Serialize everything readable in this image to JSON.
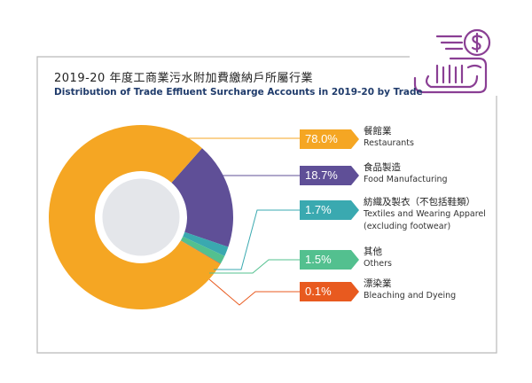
{
  "title_zh": "2019-20 年度工商業污水附加費繳納戶所屬行業",
  "title_en": "Distribution of Trade Effluent Surcharge Accounts in 2019-20 by Trade",
  "colors": {
    "frame": "#b9b9b9",
    "restaurants": "#f5a623",
    "food": "#5f4f97",
    "textiles": "#3aa9b0",
    "others": "#53c08f",
    "bleaching": "#e85a1f",
    "center": "#e4e6ea",
    "icon": "#8a3f94"
  },
  "icon": "coin-conveyor-icon",
  "chart_data": {
    "type": "pie",
    "donut": true,
    "title": "Distribution of Trade Effluent Surcharge Accounts in 2019-20 by Trade",
    "unit": "%",
    "slices": [
      {
        "key": "restaurants",
        "value": 78.0,
        "label": "78.0%",
        "name_zh": "餐館業",
        "name_en": [
          "Restaurants"
        ]
      },
      {
        "key": "food",
        "value": 18.7,
        "label": "18.7%",
        "name_zh": "食品製造",
        "name_en": [
          "Food Manufacturing"
        ]
      },
      {
        "key": "textiles",
        "value": 1.7,
        "label": "1.7%",
        "name_zh": "紡織及製衣（不包括鞋類）",
        "name_en": [
          "Textiles and Wearing Apparel",
          "(excluding footwear)"
        ]
      },
      {
        "key": "others",
        "value": 1.5,
        "label": "1.5%",
        "name_zh": "其他",
        "name_en": [
          "Others"
        ]
      },
      {
        "key": "bleaching",
        "value": 0.1,
        "label": "0.1%",
        "name_zh": "漂染業",
        "name_en": [
          "Bleaching and Dyeing"
        ]
      }
    ]
  }
}
